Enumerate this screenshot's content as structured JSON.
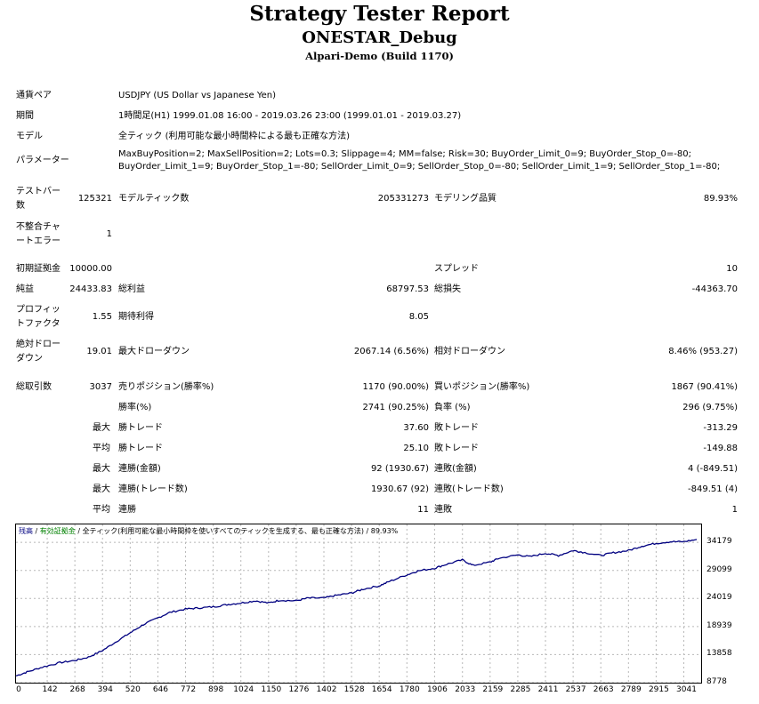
{
  "header": {
    "title": "Strategy Tester Report",
    "expert": "ONESTAR_Debug",
    "server": "Alpari-Demo (Build 1170)"
  },
  "info": {
    "symbol_label": "通貨ペア",
    "symbol_value": "USDJPY (US Dollar vs Japanese Yen)",
    "period_label": "期間",
    "period_value": "1時間足(H1) 1999.01.08 16:00 - 2019.03.26 23:00 (1999.01.01 - 2019.03.27)",
    "model_label": "モデル",
    "model_value": "全ティック (利用可能な最小時間枠による最も正確な方法)",
    "params_label": "パラメーター",
    "params_line1": "MaxBuyPosition=2; MaxSellPosition=2; Lots=0.3; Slippage=4; MM=false; Risk=30; BuyOrder_Limit_0=9; BuyOrder_Stop_0=-80;",
    "params_line2": "BuyOrder_Limit_1=9; BuyOrder_Stop_1=-80; SellOrder_Limit_0=9; SellOrder_Stop_0=-80; SellOrder_Limit_1=9; SellOrder_Stop_1=-80;"
  },
  "stats": {
    "bars_label_1": "テストバー",
    "bars_label_2": "数",
    "bars_value": "125321",
    "ticks_label": "モデルティック数",
    "ticks_value": "205331273",
    "quality_label": "モデリング品質",
    "quality_value": "89.93%",
    "mismatch_label_1": "不整合チャ",
    "mismatch_label_2": "ートエラー",
    "mismatch_value": "1",
    "deposit_label": "初期証拠金",
    "deposit_value": "10000.00",
    "spread_label": "スプレッド",
    "spread_value": "10",
    "net_label": "純益",
    "net_value": "24433.83",
    "gross_profit_label": "総利益",
    "gross_profit_value": "68797.53",
    "gross_loss_label": "総損失",
    "gross_loss_value": "-44363.70",
    "pf_label_1": "プロフィッ",
    "pf_label_2": "トファクタ",
    "pf_value": "1.55",
    "payoff_label": "期待利得",
    "payoff_value": "8.05",
    "abs_dd_label_1": "絶対ドロー",
    "abs_dd_label_2": "ダウン",
    "abs_dd_value": "19.01",
    "max_dd_label": "最大ドローダウン",
    "max_dd_value": "2067.14 (6.56%)",
    "rel_dd_label": "相対ドローダウン",
    "rel_dd_value": "8.46% (953.27)",
    "total_trades_label": "総取引数",
    "total_trades_value": "3037",
    "short_label": "売りポジション(勝率%)",
    "short_value": "1170 (90.00%)",
    "long_label": "買いポジション(勝率%)",
    "long_value": "1867 (90.41%)",
    "win_label": "勝率(%)",
    "win_value": "2741 (90.25%)",
    "loss_label": "負率 (%)",
    "loss_value": "296 (9.75%)",
    "max_word": "最大",
    "avg_word": "平均",
    "largest_win_label": "勝トレード",
    "largest_win_value": "37.60",
    "largest_loss_label": "敗トレード",
    "largest_loss_value": "-313.29",
    "avg_win_label": "勝トレード",
    "avg_win_value": "25.10",
    "avg_loss_label": "敗トレード",
    "avg_loss_value": "-149.88",
    "cons_wins_label": "連勝(金額)",
    "cons_wins_value": "92 (1930.67)",
    "cons_losses_label": "連敗(金額)",
    "cons_losses_value": "4 (-849.51)",
    "cons_profit_label": "連勝(トレード数)",
    "cons_profit_value": "1930.67 (92)",
    "cons_loss_label": "連敗(トレード数)",
    "cons_loss_value": "-849.51 (4)",
    "avg_cons_wins_label": "連勝",
    "avg_cons_wins_value": "11",
    "avg_cons_losses_label": "連敗",
    "avg_cons_losses_value": "1"
  },
  "chart_legend": {
    "balance": "残高",
    "sep1": " / ",
    "equity": "有効証拠金",
    "sep2": " / ",
    "model": "全ティック(利用可能な最小時間枠を使いすべてのティックを生成する、最も正確な方法)",
    "sep3": " / ",
    "quality": "89.93%",
    "balance_color": "#000080",
    "equity_color": "#008000"
  },
  "chart_data": {
    "type": "line",
    "title": "",
    "xlabel": "",
    "ylabel": "",
    "xlim": [
      0,
      3120
    ],
    "ylim": [
      8778,
      37420
    ],
    "x_ticks": [
      "0",
      "142",
      "268",
      "394",
      "520",
      "646",
      "772",
      "898",
      "1024",
      "1150",
      "1276",
      "1402",
      "1528",
      "1654",
      "1780",
      "1906",
      "2033",
      "2159",
      "2285",
      "2411",
      "2537",
      "2663",
      "2789",
      "2915",
      "3041"
    ],
    "y_ticks": [
      "34179",
      "29099",
      "24019",
      "18939",
      "13858",
      "8778"
    ],
    "grid": true,
    "line_color": "#000080",
    "series": [
      {
        "x": [
          0,
          50,
          120,
          200,
          268,
          330,
          394,
          460,
          520,
          580,
          646,
          700,
          772,
          830,
          898,
          960,
          1024,
          1090,
          1150,
          1200,
          1276,
          1330,
          1402,
          1460,
          1528,
          1580,
          1654,
          1700,
          1780,
          1830,
          1906,
          1960,
          2033,
          2080,
          2159,
          2200,
          2285,
          2340,
          2411,
          2470,
          2537,
          2580,
          2663,
          2720,
          2789,
          2850,
          2915,
          2980,
          3041,
          3100
        ],
        "y": [
          10000,
          10700,
          11600,
          12400,
          12800,
          13400,
          14600,
          16300,
          17800,
          19300,
          20500,
          21500,
          22100,
          22300,
          22500,
          22900,
          23200,
          23600,
          23200,
          23700,
          23600,
          24100,
          24100,
          24600,
          25000,
          25700,
          26300,
          27100,
          28300,
          29000,
          29500,
          30200,
          31000,
          30000,
          30600,
          31300,
          31900,
          31600,
          32200,
          31800,
          32700,
          32400,
          31800,
          32300,
          32700,
          33500,
          34000,
          34300,
          34300,
          34700
        ]
      }
    ]
  }
}
